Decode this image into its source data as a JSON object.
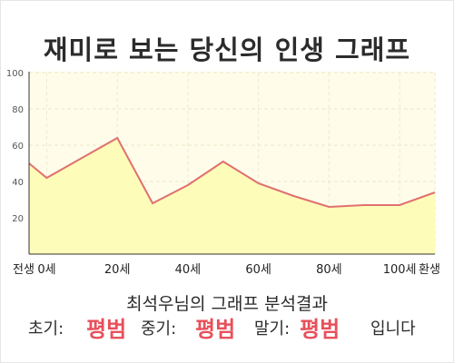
{
  "title": "재미로 보는 당신의 인생 그래프",
  "chart_data": {
    "type": "area",
    "x": [
      -5,
      0,
      10,
      20,
      30,
      40,
      50,
      60,
      70,
      80,
      90,
      100,
      110
    ],
    "values": [
      50,
      42,
      53,
      64,
      28,
      38,
      51,
      39,
      32,
      26,
      27,
      27,
      34
    ],
    "x_tick_labels": [
      "전생",
      "0세",
      "20세",
      "40세",
      "60세",
      "80세",
      "100세",
      "환생"
    ],
    "y_ticks": [
      "20",
      "40",
      "60",
      "80",
      "100"
    ],
    "ylim": [
      0,
      100
    ],
    "grid": true,
    "colors": {
      "line": "#e07070",
      "fill": "#fdfcb8",
      "plot_bg": "#fffdea"
    }
  },
  "summary": "최석우님의 그래프 분석결과",
  "early_label": "초기:",
  "early_value": "평범",
  "middle_label": "중기:",
  "middle_value": "평범",
  "late_label": "말기:",
  "late_value": "평범",
  "ending": "입니다"
}
